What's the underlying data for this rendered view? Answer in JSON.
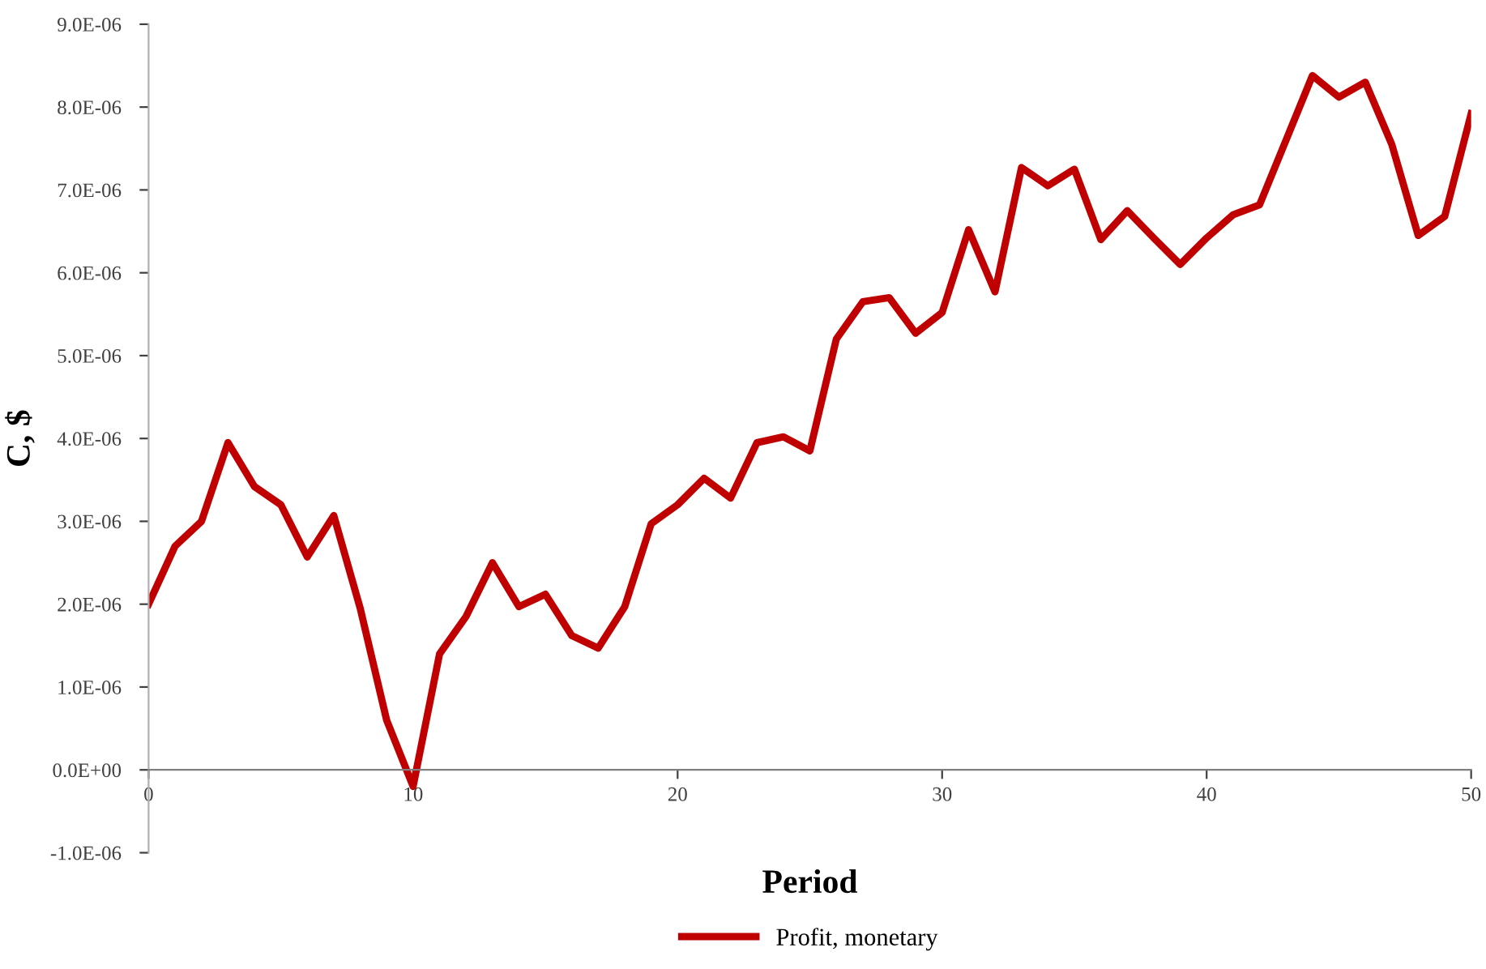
{
  "chart_data": {
    "type": "line",
    "xlabel": "Period",
    "ylabel": "C, $",
    "x": [
      0,
      1,
      2,
      3,
      4,
      5,
      6,
      7,
      8,
      9,
      10,
      11,
      12,
      13,
      14,
      15,
      16,
      17,
      18,
      19,
      20,
      21,
      22,
      23,
      24,
      25,
      26,
      27,
      28,
      29,
      30,
      31,
      32,
      33,
      34,
      35,
      36,
      37,
      38,
      39,
      40,
      41,
      42,
      43,
      44,
      45,
      46,
      47,
      48,
      49,
      50
    ],
    "series": [
      {
        "name": "Profit, monetary",
        "color": "#c00000",
        "values": [
          2e-06,
          2.7e-06,
          3e-06,
          3.95e-06,
          3.42e-06,
          3.2e-06,
          2.57e-06,
          3.07e-06,
          1.95e-06,
          6e-07,
          -2e-07,
          1.4e-06,
          1.85e-06,
          2.5e-06,
          1.97e-06,
          2.12e-06,
          1.62e-06,
          1.47e-06,
          1.97e-06,
          2.97e-06,
          3.2e-06,
          3.52e-06,
          3.28e-06,
          3.95e-06,
          4.02e-06,
          3.85e-06,
          5.2e-06,
          5.65e-06,
          5.7e-06,
          5.27e-06,
          5.52e-06,
          6.52e-06,
          5.77e-06,
          7.27e-06,
          7.05e-06,
          7.25e-06,
          6.4e-06,
          6.75e-06,
          6.42e-06,
          6.1e-06,
          6.42e-06,
          6.7e-06,
          6.82e-06,
          7.6e-06,
          8.38e-06,
          8.12e-06,
          8.3e-06,
          7.55e-06,
          6.45e-06,
          6.68e-06,
          7.92e-06
        ]
      }
    ],
    "xlim": [
      0,
      50
    ],
    "xticks": [
      0,
      10,
      20,
      30,
      40,
      50
    ],
    "ylim": [
      -1e-06,
      9e-06
    ],
    "yticks": [
      {
        "value": -1e-06,
        "label": "-1.0E-06"
      },
      {
        "value": 0,
        "label": "0.0E+00"
      },
      {
        "value": 1e-06,
        "label": "1.0E-06"
      },
      {
        "value": 2e-06,
        "label": "2.0E-06"
      },
      {
        "value": 3e-06,
        "label": "3.0E-06"
      },
      {
        "value": 4e-06,
        "label": "4.0E-06"
      },
      {
        "value": 5e-06,
        "label": "5.0E-06"
      },
      {
        "value": 6e-06,
        "label": "6.0E-06"
      },
      {
        "value": 7e-06,
        "label": "7.0E-06"
      },
      {
        "value": 8e-06,
        "label": "8.0E-06"
      },
      {
        "value": 9e-06,
        "label": "9.0E-06"
      }
    ],
    "grid": false,
    "legend": "bottom",
    "marker": "none",
    "line_style": "solid"
  }
}
